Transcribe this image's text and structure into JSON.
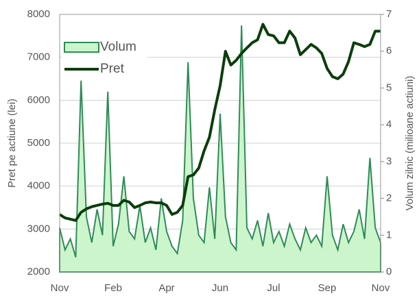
{
  "chart_data": {
    "type": "line",
    "categories": [
      "Nov",
      null,
      null,
      null,
      null,
      null,
      null,
      null,
      null,
      null,
      "Feb",
      null,
      null,
      null,
      null,
      null,
      null,
      null,
      null,
      null,
      "Apr",
      null,
      null,
      null,
      null,
      null,
      null,
      null,
      null,
      null,
      "Jun",
      null,
      null,
      null,
      null,
      null,
      null,
      null,
      null,
      null,
      "Jul",
      null,
      null,
      null,
      null,
      null,
      null,
      null,
      null,
      null,
      "Sep",
      null,
      null,
      null,
      null,
      null,
      null,
      null,
      null,
      null,
      "Nov"
    ],
    "series": [
      {
        "name": "Volum",
        "color": "#2e8b57",
        "fill": "#ccf5cc",
        "axis": "y2",
        "values": [
          1.2,
          0.6,
          0.9,
          0.4,
          5.2,
          1.5,
          0.8,
          1.7,
          1.0,
          4.9,
          0.7,
          1.3,
          2.6,
          1.1,
          0.9,
          1.8,
          0.8,
          1.2,
          0.6,
          2.0,
          1.1,
          0.7,
          0.5,
          1.4,
          5.7,
          2.0,
          1.0,
          0.8,
          2.3,
          0.9,
          4.3,
          1.5,
          0.8,
          0.6,
          6.7,
          1.2,
          0.9,
          1.4,
          0.7,
          1.6,
          0.8,
          1.1,
          0.7,
          1.3,
          0.9,
          0.6,
          1.2,
          0.8,
          1.0,
          0.7,
          2.6,
          1.0,
          0.6,
          1.3,
          0.8,
          1.1,
          1.7,
          0.9,
          3.1,
          1.2,
          0.8
        ]
      },
      {
        "name": "Pret",
        "color": "#0b3d0b",
        "values": [
          3340,
          3260,
          3230,
          3200,
          3390,
          3470,
          3520,
          3550,
          3580,
          3600,
          3550,
          3550,
          3670,
          3630,
          3500,
          3550,
          3610,
          3630,
          3610,
          3610,
          3550,
          3340,
          3390,
          3550,
          4220,
          4260,
          4420,
          4820,
          5140,
          5780,
          6340,
          7140,
          6820,
          6930,
          7090,
          7220,
          7340,
          7410,
          7770,
          7530,
          7500,
          7340,
          7340,
          7610,
          7450,
          7060,
          7180,
          7300,
          7220,
          7090,
          6740,
          6550,
          6500,
          6610,
          6900,
          7340,
          7300,
          7250,
          7300,
          7610,
          7610
        ]
      }
    ],
    "ylabel": "Pret pe actiune (lei)",
    "y2label": "Volum zilnic (milioane actiuni)",
    "ylim": [
      2000,
      8000
    ],
    "yticks": [
      2000,
      3000,
      4000,
      5000,
      6000,
      7000,
      8000
    ],
    "y2lim": [
      0,
      7
    ],
    "y2ticks": [
      0,
      1,
      2,
      3,
      4,
      5,
      6,
      7
    ],
    "grid": true,
    "legend": "upper-left"
  }
}
